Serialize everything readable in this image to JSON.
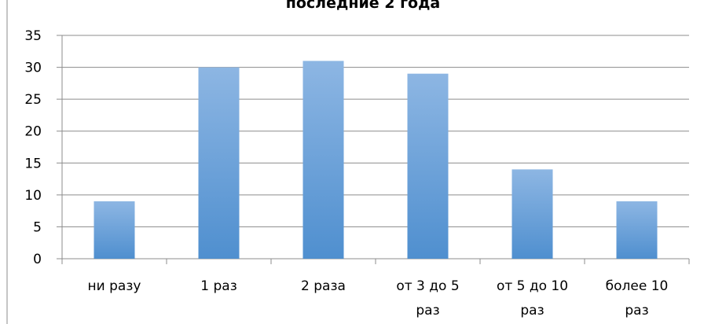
{
  "chart_data": {
    "type": "bar",
    "title": "последние 2 года",
    "categories": [
      [
        "ни разу"
      ],
      [
        "1 раз"
      ],
      [
        "2 раза"
      ],
      [
        "от 3 до 5",
        "раз"
      ],
      [
        "от 5 до 10",
        "раз"
      ],
      [
        "более 10",
        "раз"
      ]
    ],
    "values": [
      9,
      30,
      31,
      29,
      14,
      9
    ],
    "ylim": [
      0,
      35
    ],
    "yticks": [
      "0",
      "5",
      "10",
      "15",
      "20",
      "25",
      "30",
      "35"
    ],
    "grid": true,
    "colors": {
      "bar_top": "#8db6e3",
      "bar_bottom": "#4f8fcf",
      "grid": "#8c8c8c"
    }
  }
}
